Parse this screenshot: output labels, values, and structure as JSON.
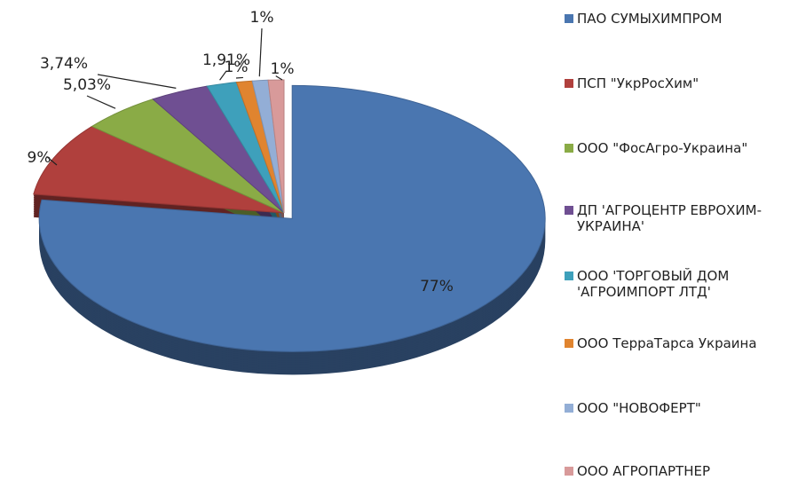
{
  "chart_data": {
    "type": "pie",
    "categories": [
      "ПАО СУМЫХИМПРОМ",
      "ПСП \"УкрРосХим\"",
      "ООО \"ФосАгро-Украина\"",
      "ДП 'АГРОЦЕНТР ЕВРОХИМ-УКРАИНА'",
      "ООО 'ТОРГОВЫЙ ДОМ 'АГРОИМПОРТ ЛТД'",
      "ООО ТерраТарса Украина",
      "ООО \"НОВОФЕРТ\"",
      "ООО АГРОПАРТНЕР"
    ],
    "values": [
      77,
      9,
      5.03,
      3.74,
      1.91,
      1,
      1,
      1
    ],
    "value_labels": [
      "77%",
      "9%",
      "5,03%",
      "3,74%",
      "1,91%",
      "1%",
      "1%",
      "1%"
    ],
    "colors": [
      "#4a76b0",
      "#b0403d",
      "#8aab46",
      "#6f4f92",
      "#3ea0bb",
      "#e0842f",
      "#93aed6",
      "#d89a9a"
    ],
    "legend": "right"
  }
}
